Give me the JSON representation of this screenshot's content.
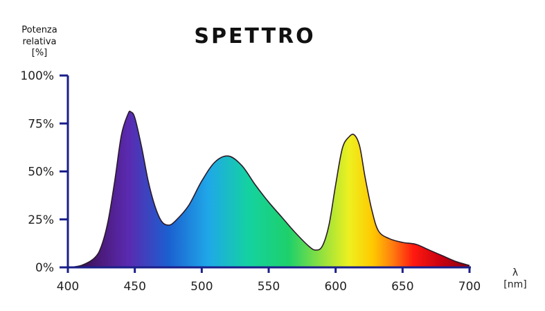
{
  "chart_data": {
    "type": "area",
    "title": "SPETTRO",
    "ylabel": [
      "Potenza",
      "relativa",
      "[%]"
    ],
    "xlabel": [
      "λ",
      "[nm]"
    ],
    "xlim": [
      400,
      700
    ],
    "ylim": [
      0,
      100
    ],
    "xticks": [
      400,
      450,
      500,
      550,
      600,
      650,
      700
    ],
    "yticks": [
      {
        "value": 0,
        "label": "0%"
      },
      {
        "value": 25,
        "label": "25%"
      },
      {
        "value": 50,
        "label": "50%"
      },
      {
        "value": 75,
        "label": "75%"
      },
      {
        "value": 100,
        "label": "100%"
      }
    ],
    "fill": "visible-spectrum gradient",
    "series": [
      {
        "x": [
          400,
          410,
          420,
          425,
          430,
          435,
          440,
          445,
          447,
          450,
          455,
          460,
          465,
          470,
          475,
          480,
          490,
          500,
          510,
          520,
          530,
          540,
          550,
          560,
          570,
          580,
          585,
          590,
          595,
          600,
          605,
          610,
          614,
          618,
          622,
          627,
          632,
          640,
          650,
          660,
          670,
          680,
          690,
          700
        ],
        "y": [
          0,
          1,
          5,
          11,
          24,
          45,
          69,
          80,
          81,
          78,
          63,
          45,
          32,
          24,
          22,
          24,
          32,
          45,
          55,
          58,
          53,
          43,
          34,
          26,
          18,
          11,
          9,
          11,
          22,
          43,
          62,
          68,
          69,
          63,
          47,
          30,
          19,
          15,
          13,
          12,
          9,
          6,
          3,
          1
        ]
      }
    ]
  }
}
